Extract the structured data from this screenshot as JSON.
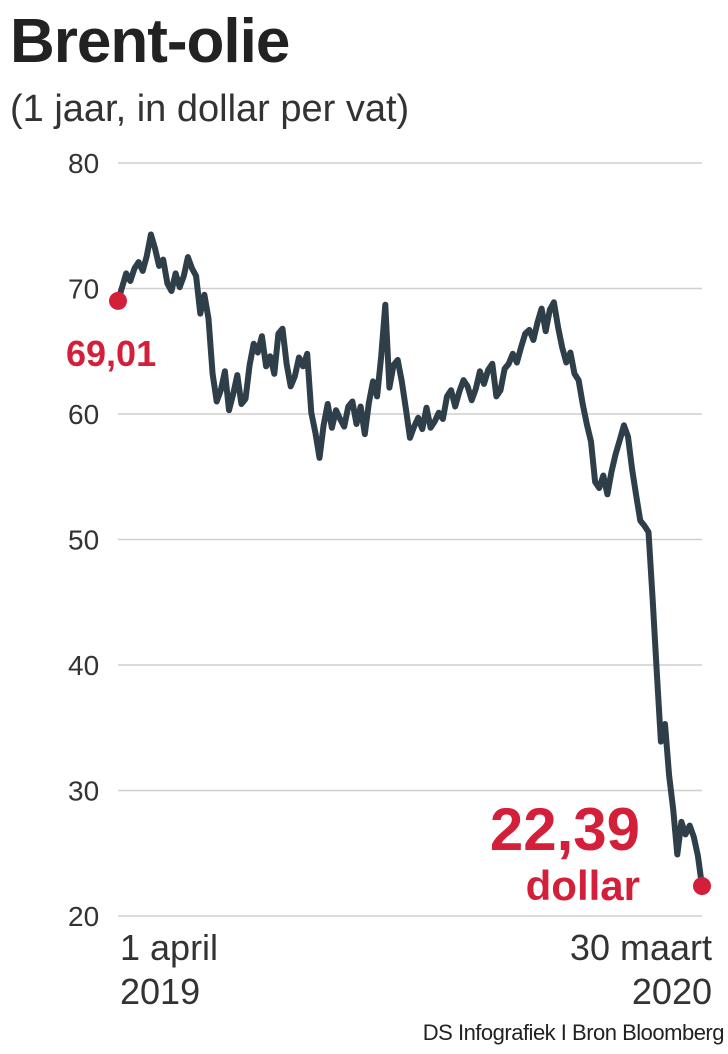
{
  "header": {
    "title": "Brent-olie",
    "subtitle": "(1 jaar, in dollar per vat)"
  },
  "source": "DS Infografiek I Bron Bloomberg",
  "colors": {
    "line": "#2f3f49",
    "accent": "#d41f3a",
    "grid": "#cfcfcf",
    "text": "#333333"
  },
  "chart_data": {
    "type": "line",
    "title": "Brent-olie",
    "subtitle": "(1 jaar, in dollar per vat)",
    "xlabel": "",
    "ylabel": "",
    "ylim": [
      20,
      80
    ],
    "yticks": [
      80,
      70,
      60,
      50,
      40,
      30,
      20
    ],
    "grid": true,
    "x_labels": {
      "start": [
        "1 april",
        "2019"
      ],
      "end": [
        "30 maart",
        "2020"
      ]
    },
    "annotations": {
      "start_value": "69,01",
      "end_value": "22,39",
      "end_unit": "dollar"
    },
    "series": [
      {
        "values": [
          69.01,
          70.1,
          71.2,
          70.6,
          71.6,
          72.1,
          71.4,
          72.6,
          74.3,
          73.2,
          71.8,
          72.3,
          70.4,
          69.8,
          71.2,
          70.1,
          71.0,
          72.5,
          71.6,
          71.0,
          68.0,
          69.5,
          67.6,
          63.2,
          61.0,
          61.9,
          63.4,
          60.3,
          61.6,
          63.1,
          60.8,
          61.2,
          63.9,
          65.6,
          64.9,
          66.2,
          63.8,
          64.6,
          63.2,
          66.4,
          66.8,
          64.0,
          62.2,
          63.0,
          64.5,
          63.8,
          64.8,
          60.1,
          58.5,
          56.5,
          59.1,
          60.8,
          58.9,
          60.3,
          59.6,
          59.0,
          60.6,
          61.0,
          59.2,
          60.6,
          58.4,
          60.9,
          62.6,
          61.4,
          64.6,
          68.7,
          62.1,
          63.9,
          64.3,
          62.6,
          60.4,
          58.1,
          59.0,
          59.7,
          58.8,
          60.5,
          58.9,
          59.4,
          60.1,
          59.6,
          61.4,
          61.9,
          60.6,
          61.8,
          62.7,
          62.2,
          61.1,
          62.0,
          63.4,
          62.4,
          63.5,
          64.0,
          61.4,
          61.9,
          63.6,
          64.0,
          64.8,
          64.1,
          65.3,
          66.4,
          66.7,
          65.9,
          67.3,
          68.4,
          66.6,
          68.3,
          68.9,
          66.9,
          65.3,
          64.1,
          64.9,
          63.2,
          62.7,
          60.8,
          59.2,
          57.8,
          54.6,
          54.1,
          55.1,
          53.6,
          55.4,
          56.8,
          57.9,
          59.1,
          58.2,
          55.6,
          53.5,
          51.5,
          51.1,
          50.6,
          45.3,
          39.4,
          33.9,
          35.3,
          31.2,
          28.5,
          24.9,
          27.5,
          26.5,
          27.2,
          26.3,
          24.8,
          22.39
        ]
      }
    ]
  }
}
